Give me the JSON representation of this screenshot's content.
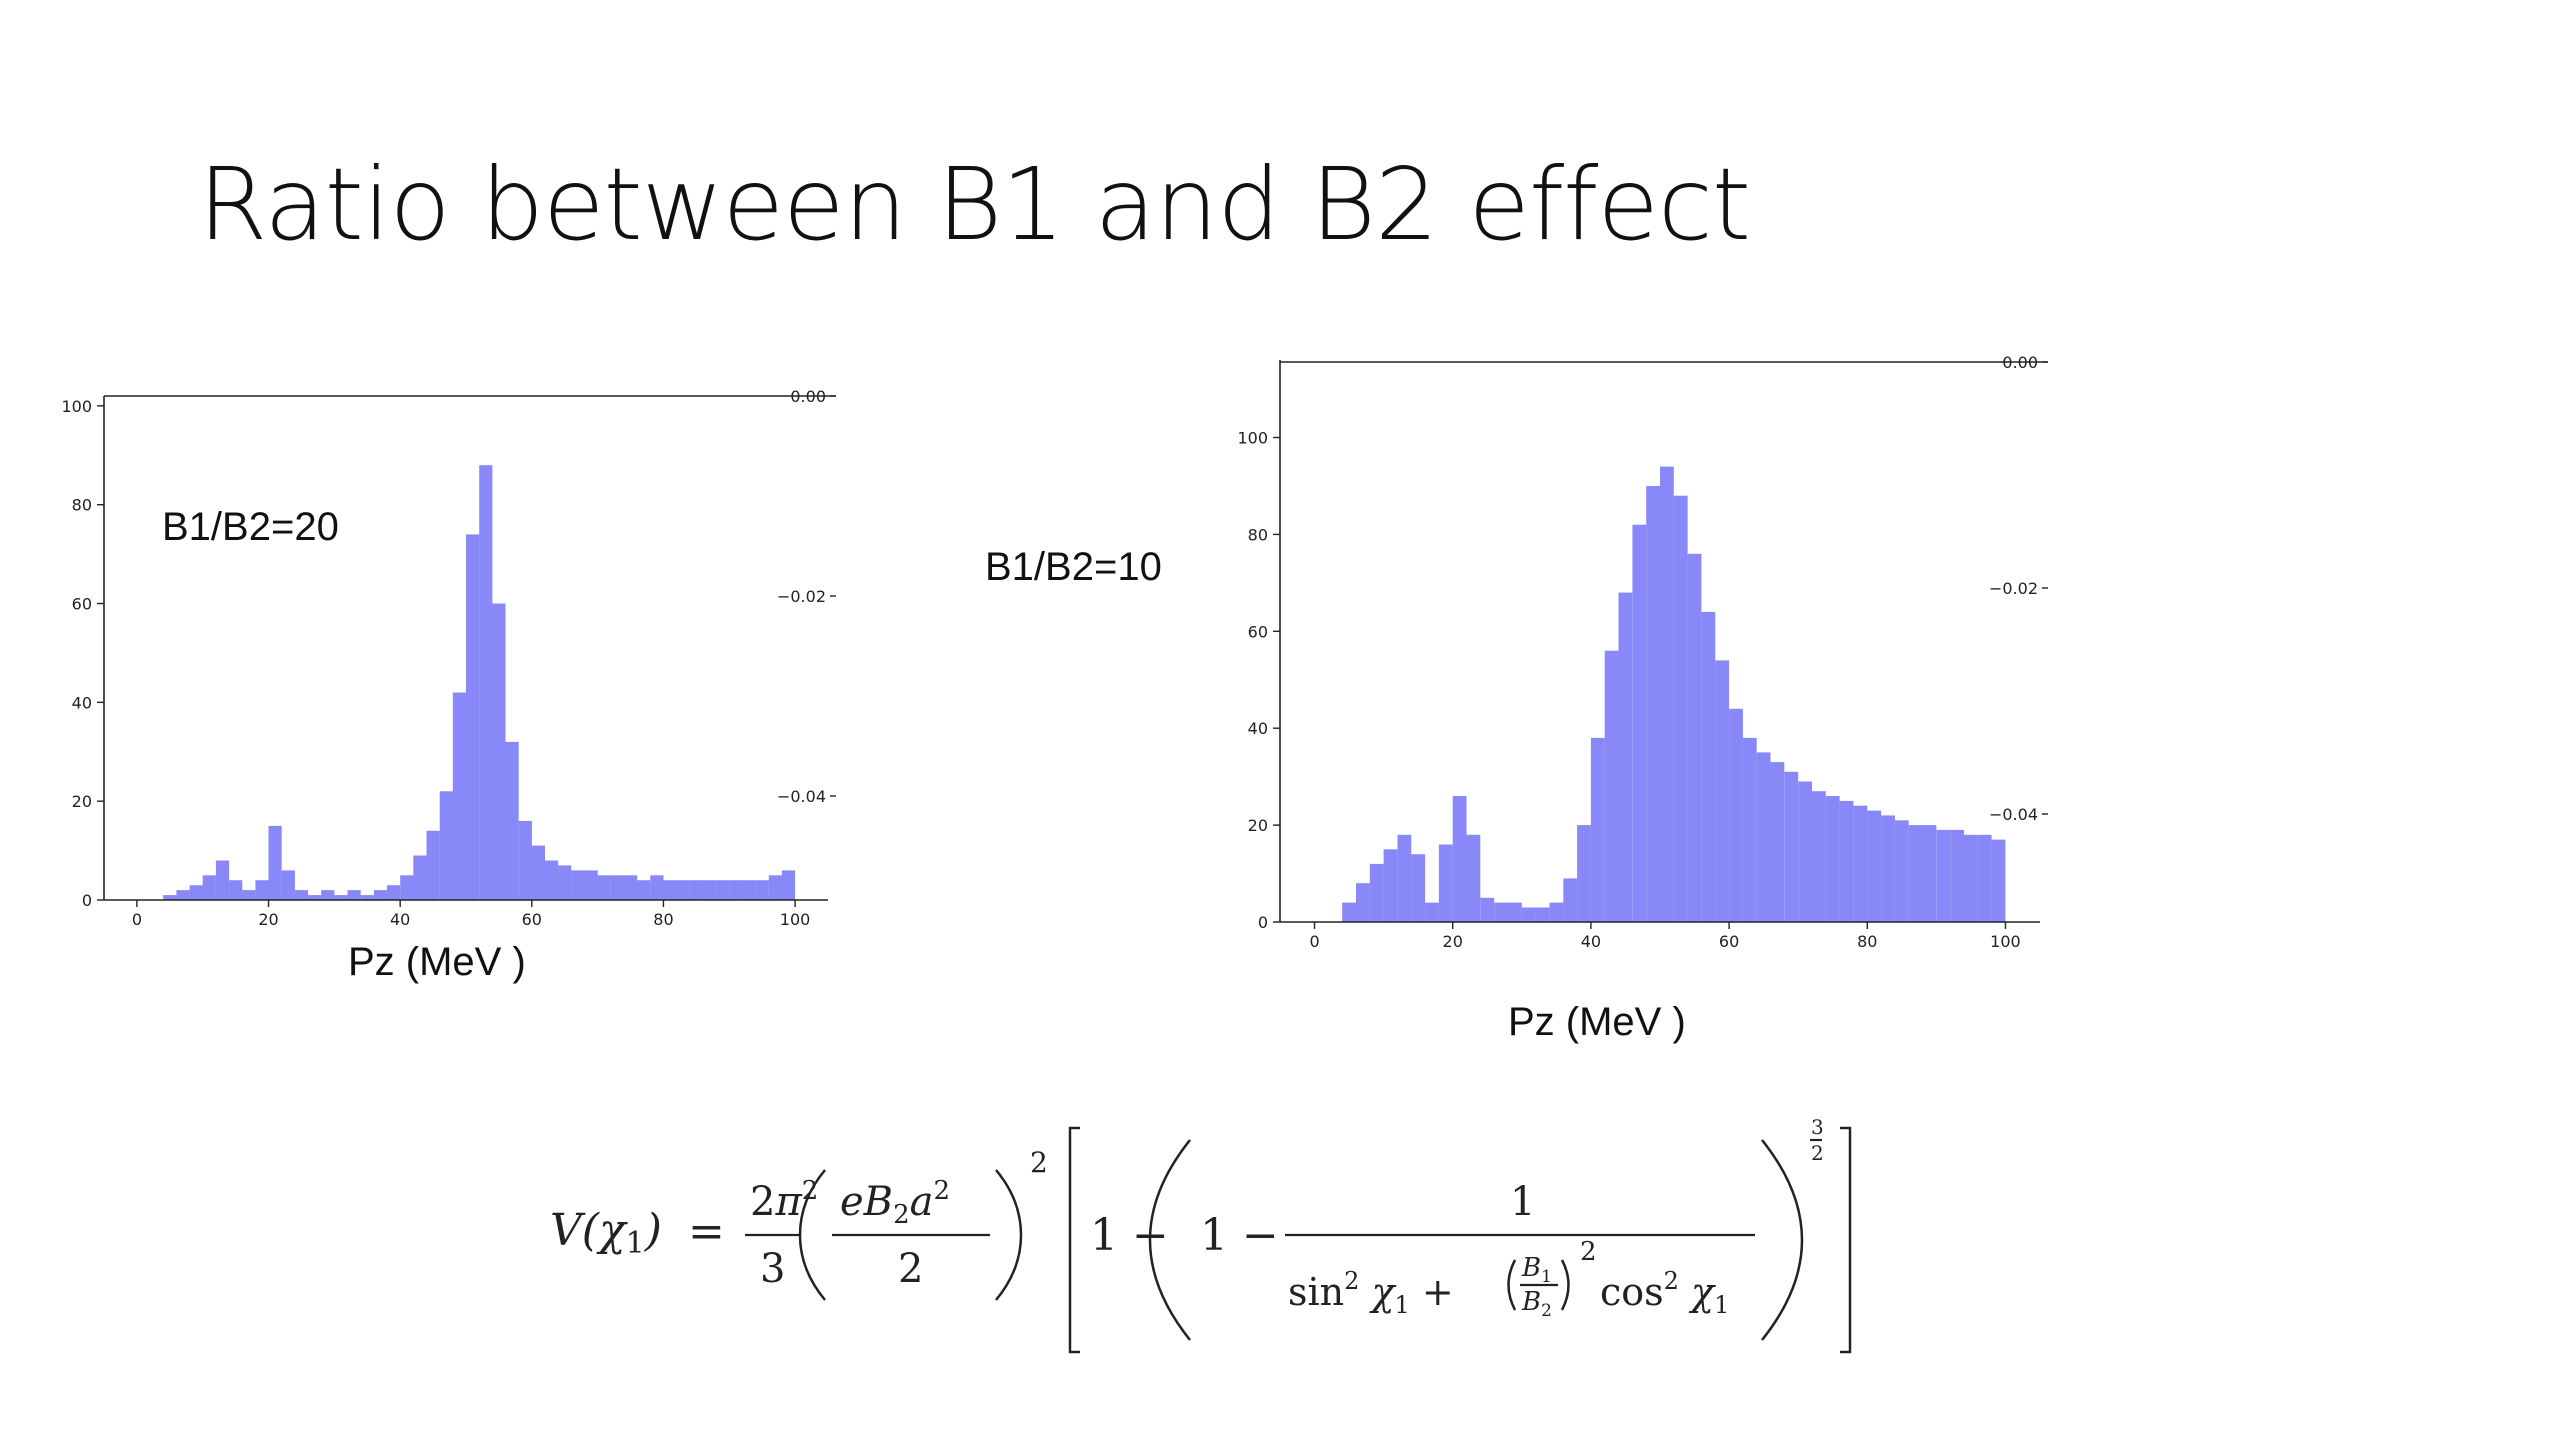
{
  "slide": {
    "title": "Ratio between B1 and B2 effect"
  },
  "formula": {
    "latex": "V(\\chi_1) = \\frac{2\\pi^2}{3}\\left(\\frac{eB_2a^2}{2}\\right)^2\\left[1-\\left(1-\\frac{1}{\\sin^2\\chi_1+\\left(\\frac{B_1}{B_2}\\right)^2\\cos^2\\chi_1}\\right)^{\\frac{3}{2}}\\right]"
  },
  "chart_data": [
    {
      "type": "bar",
      "label": "B1/B2=20",
      "xlabel": "Pz (MeV )",
      "ylabel": "",
      "xlim": [
        -5,
        105
      ],
      "ylim": [
        0,
        102
      ],
      "x_ticks": [
        "0",
        "20",
        "40",
        "60",
        "80",
        "100"
      ],
      "y_ticks": [
        "0",
        "20",
        "40",
        "60",
        "80",
        "100"
      ],
      "secondary_y_ticks": [
        "0.00",
        "−0.02",
        "−0.04"
      ],
      "bar_color": "#7b7bf7",
      "x": [
        5,
        7,
        9,
        11,
        13,
        15,
        17,
        19,
        21,
        23,
        25,
        27,
        29,
        31,
        33,
        35,
        37,
        39,
        41,
        43,
        45,
        47,
        49,
        51,
        53,
        55,
        57,
        59,
        61,
        63,
        65,
        67,
        69,
        71,
        73,
        75,
        77,
        79,
        81,
        83,
        85,
        87,
        89,
        91,
        93,
        95,
        97,
        99
      ],
      "values": [
        1,
        2,
        3,
        5,
        8,
        4,
        2,
        4,
        15,
        6,
        2,
        1,
        2,
        1,
        2,
        1,
        2,
        3,
        5,
        9,
        14,
        22,
        42,
        74,
        88,
        60,
        32,
        16,
        11,
        8,
        7,
        6,
        6,
        5,
        5,
        5,
        4,
        5,
        4,
        4,
        4,
        4,
        4,
        4,
        4,
        4,
        5,
        6
      ]
    },
    {
      "type": "bar",
      "label": "B1/B2=10",
      "xlabel": "Pz (MeV )",
      "ylabel": "",
      "xlim": [
        -5,
        105
      ],
      "ylim": [
        0,
        116
      ],
      "x_ticks": [
        "0",
        "20",
        "40",
        "60",
        "80",
        "100"
      ],
      "y_ticks": [
        "0",
        "20",
        "40",
        "60",
        "80",
        "100"
      ],
      "secondary_y_ticks": [
        "0.00",
        "−0.02",
        "−0.04"
      ],
      "bar_color": "#7b7bf7",
      "x": [
        5,
        7,
        9,
        11,
        13,
        15,
        17,
        19,
        21,
        23,
        25,
        27,
        29,
        31,
        33,
        35,
        37,
        39,
        41,
        43,
        45,
        47,
        49,
        51,
        53,
        55,
        57,
        59,
        61,
        63,
        65,
        67,
        69,
        71,
        73,
        75,
        77,
        79,
        81,
        83,
        85,
        87,
        89,
        91,
        93,
        95,
        97,
        99
      ],
      "values": [
        4,
        8,
        12,
        15,
        18,
        14,
        4,
        16,
        26,
        18,
        5,
        4,
        4,
        3,
        3,
        4,
        9,
        20,
        38,
        56,
        68,
        82,
        90,
        94,
        88,
        76,
        64,
        54,
        44,
        38,
        35,
        33,
        31,
        29,
        27,
        26,
        25,
        24,
        23,
        22,
        21,
        20,
        20,
        19,
        19,
        18,
        18,
        17
      ]
    }
  ]
}
